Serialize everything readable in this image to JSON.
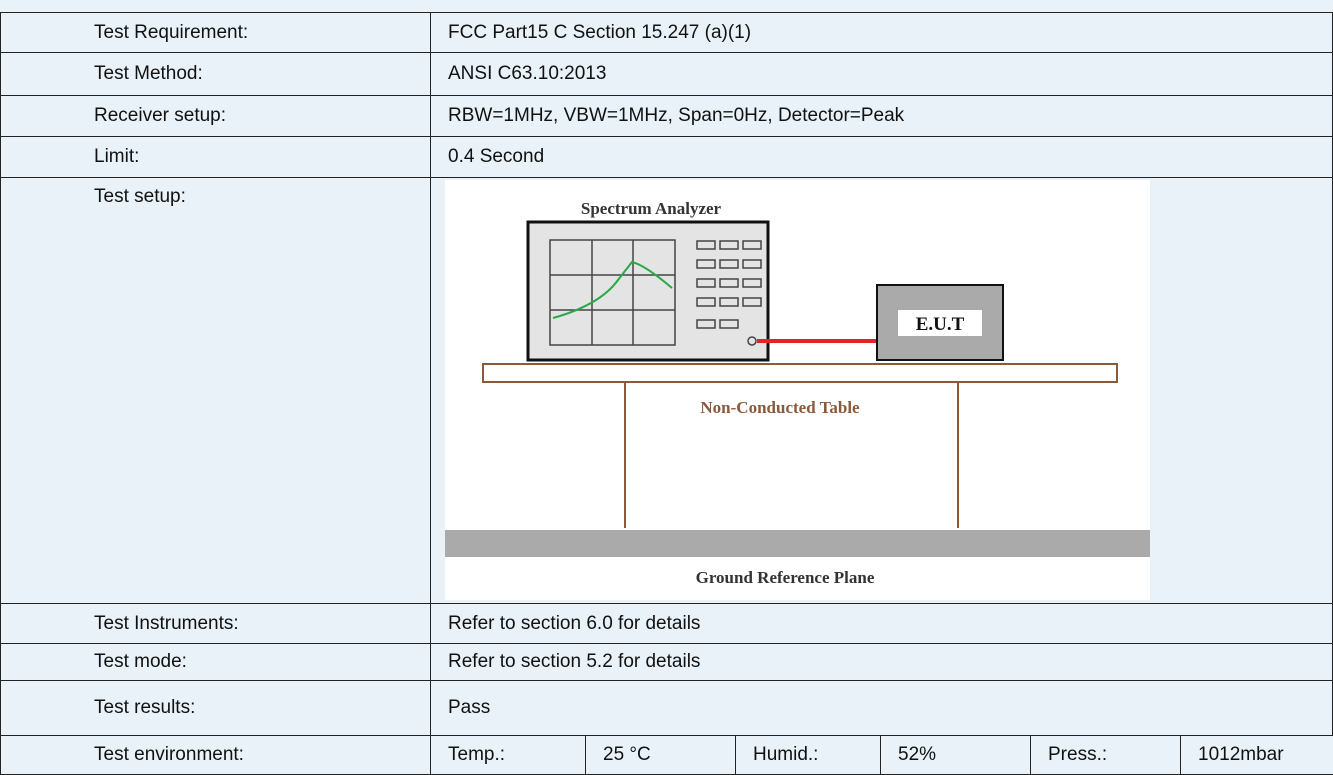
{
  "rows_top": [
    {
      "label": "Test Requirement:",
      "value": "FCC Part15 C Section 15.247 (a)(1)"
    },
    {
      "label": "Test Method:",
      "value": "ANSI C63.10:2013"
    },
    {
      "label": "Receiver setup:",
      "value": "RBW=1MHz, VBW=1MHz, Span=0Hz, Detector=Peak"
    },
    {
      "label": "Limit:",
      "value": "0.4 Second"
    }
  ],
  "setup": {
    "label": "Test setup:",
    "analyzer": "Spectrum Analyzer",
    "eut": "E.U.T",
    "table": "Non-Conducted Table",
    "ground": "Ground Reference Plane"
  },
  "rows_bottom": [
    {
      "label": "Test Instruments:",
      "value": "Refer to section 6.0 for details"
    },
    {
      "label": "Test mode:",
      "value": "Refer to section 5.2 for details"
    },
    {
      "label": "Test results:",
      "value": "Pass"
    }
  ],
  "environment": {
    "label": "Test environment:",
    "cells": [
      "Temp.:",
      "25 °C",
      "Humid.:",
      "52%",
      "Press.:",
      "1012mbar"
    ]
  }
}
